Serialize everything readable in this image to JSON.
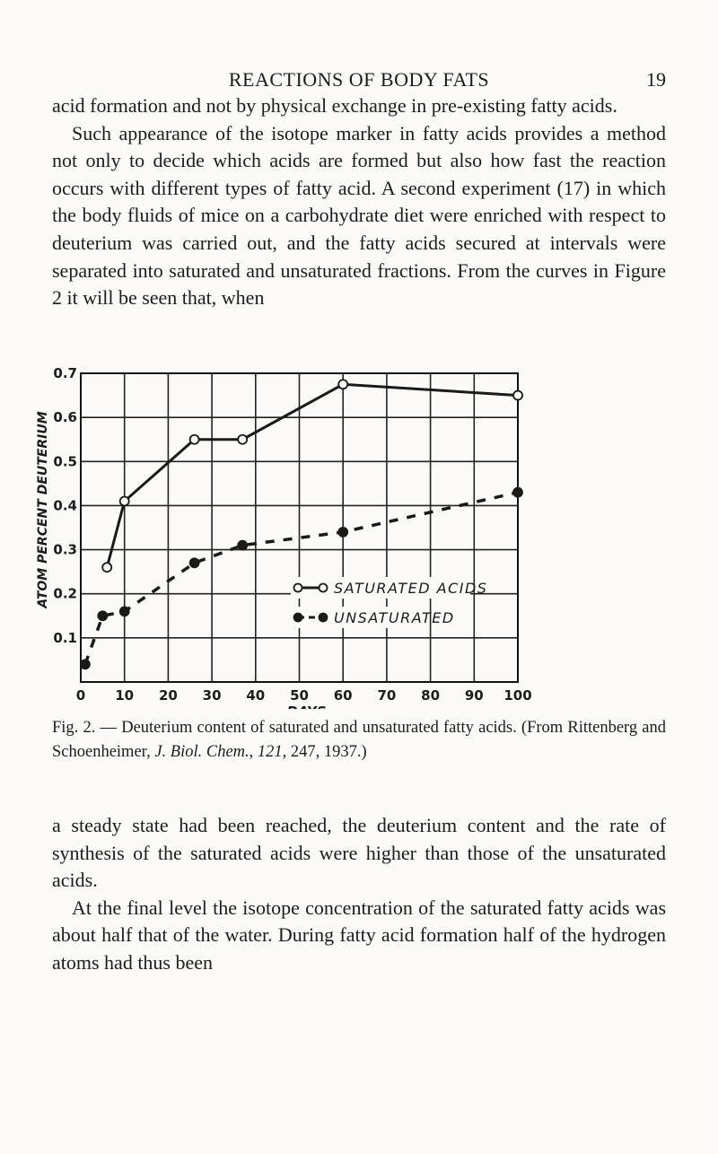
{
  "header": {
    "title": "REACTIONS OF BODY FATS",
    "page_number": "19"
  },
  "paragraphs_before": [
    "acid formation and not by physical exchange in pre-existing fatty acids.",
    "Such appearance of the isotope marker in fatty acids provides a method not only to decide which acids are formed but also how fast the reaction occurs with different types of fatty acid. A second experiment (17) in which the body fluids of mice on a carbohydrate diet were enriched with respect to deuterium was carried out, and the fatty acids secured at intervals were separated into saturated and unsaturated fractions. From the curves in Figure 2 it will be seen that, when"
  ],
  "chart_data": {
    "type": "line",
    "x_label": "DAYS",
    "y_label": "ATOM PERCENT DEUTERIUM",
    "xlim": [
      0,
      100
    ],
    "xticks": [
      0,
      10,
      20,
      30,
      40,
      50,
      60,
      70,
      80,
      90,
      100
    ],
    "ylim": [
      0,
      0.7
    ],
    "yticks": [
      0.1,
      0.2,
      0.3,
      0.4,
      0.5,
      0.6,
      0.7
    ],
    "grid": true,
    "series": [
      {
        "name": "SATURATED ACIDS",
        "color": "#1a1a1a",
        "marker": "open",
        "x": [
          6,
          10,
          26,
          37,
          60,
          100
        ],
        "values": [
          0.26,
          0.41,
          0.55,
          0.55,
          0.675,
          0.65
        ]
      },
      {
        "name": "UNSATURATED",
        "color": "#1a1a1a",
        "marker": "filled",
        "x": [
          1,
          5,
          10,
          26,
          37,
          60,
          100
        ],
        "values": [
          0.04,
          0.15,
          0.16,
          0.27,
          0.31,
          0.34,
          0.43
        ]
      }
    ]
  },
  "caption": [
    "Fig. 2. — Deuterium content of saturated and unsaturated fatty acids. (From Rittenberg and Schoenheimer, ",
    "J. Biol. Chem.",
    ", ",
    "121",
    ", 247, 1937.)"
  ],
  "paragraphs_after": [
    "a steady state had been reached, the deuterium content and the rate of synthesis of the saturated acids were higher than those of the unsaturated acids.",
    "At the final level the isotope concentration of the saturated fatty acids was about half that of the water. During fatty acid formation half of the hydrogen atoms had thus been"
  ]
}
